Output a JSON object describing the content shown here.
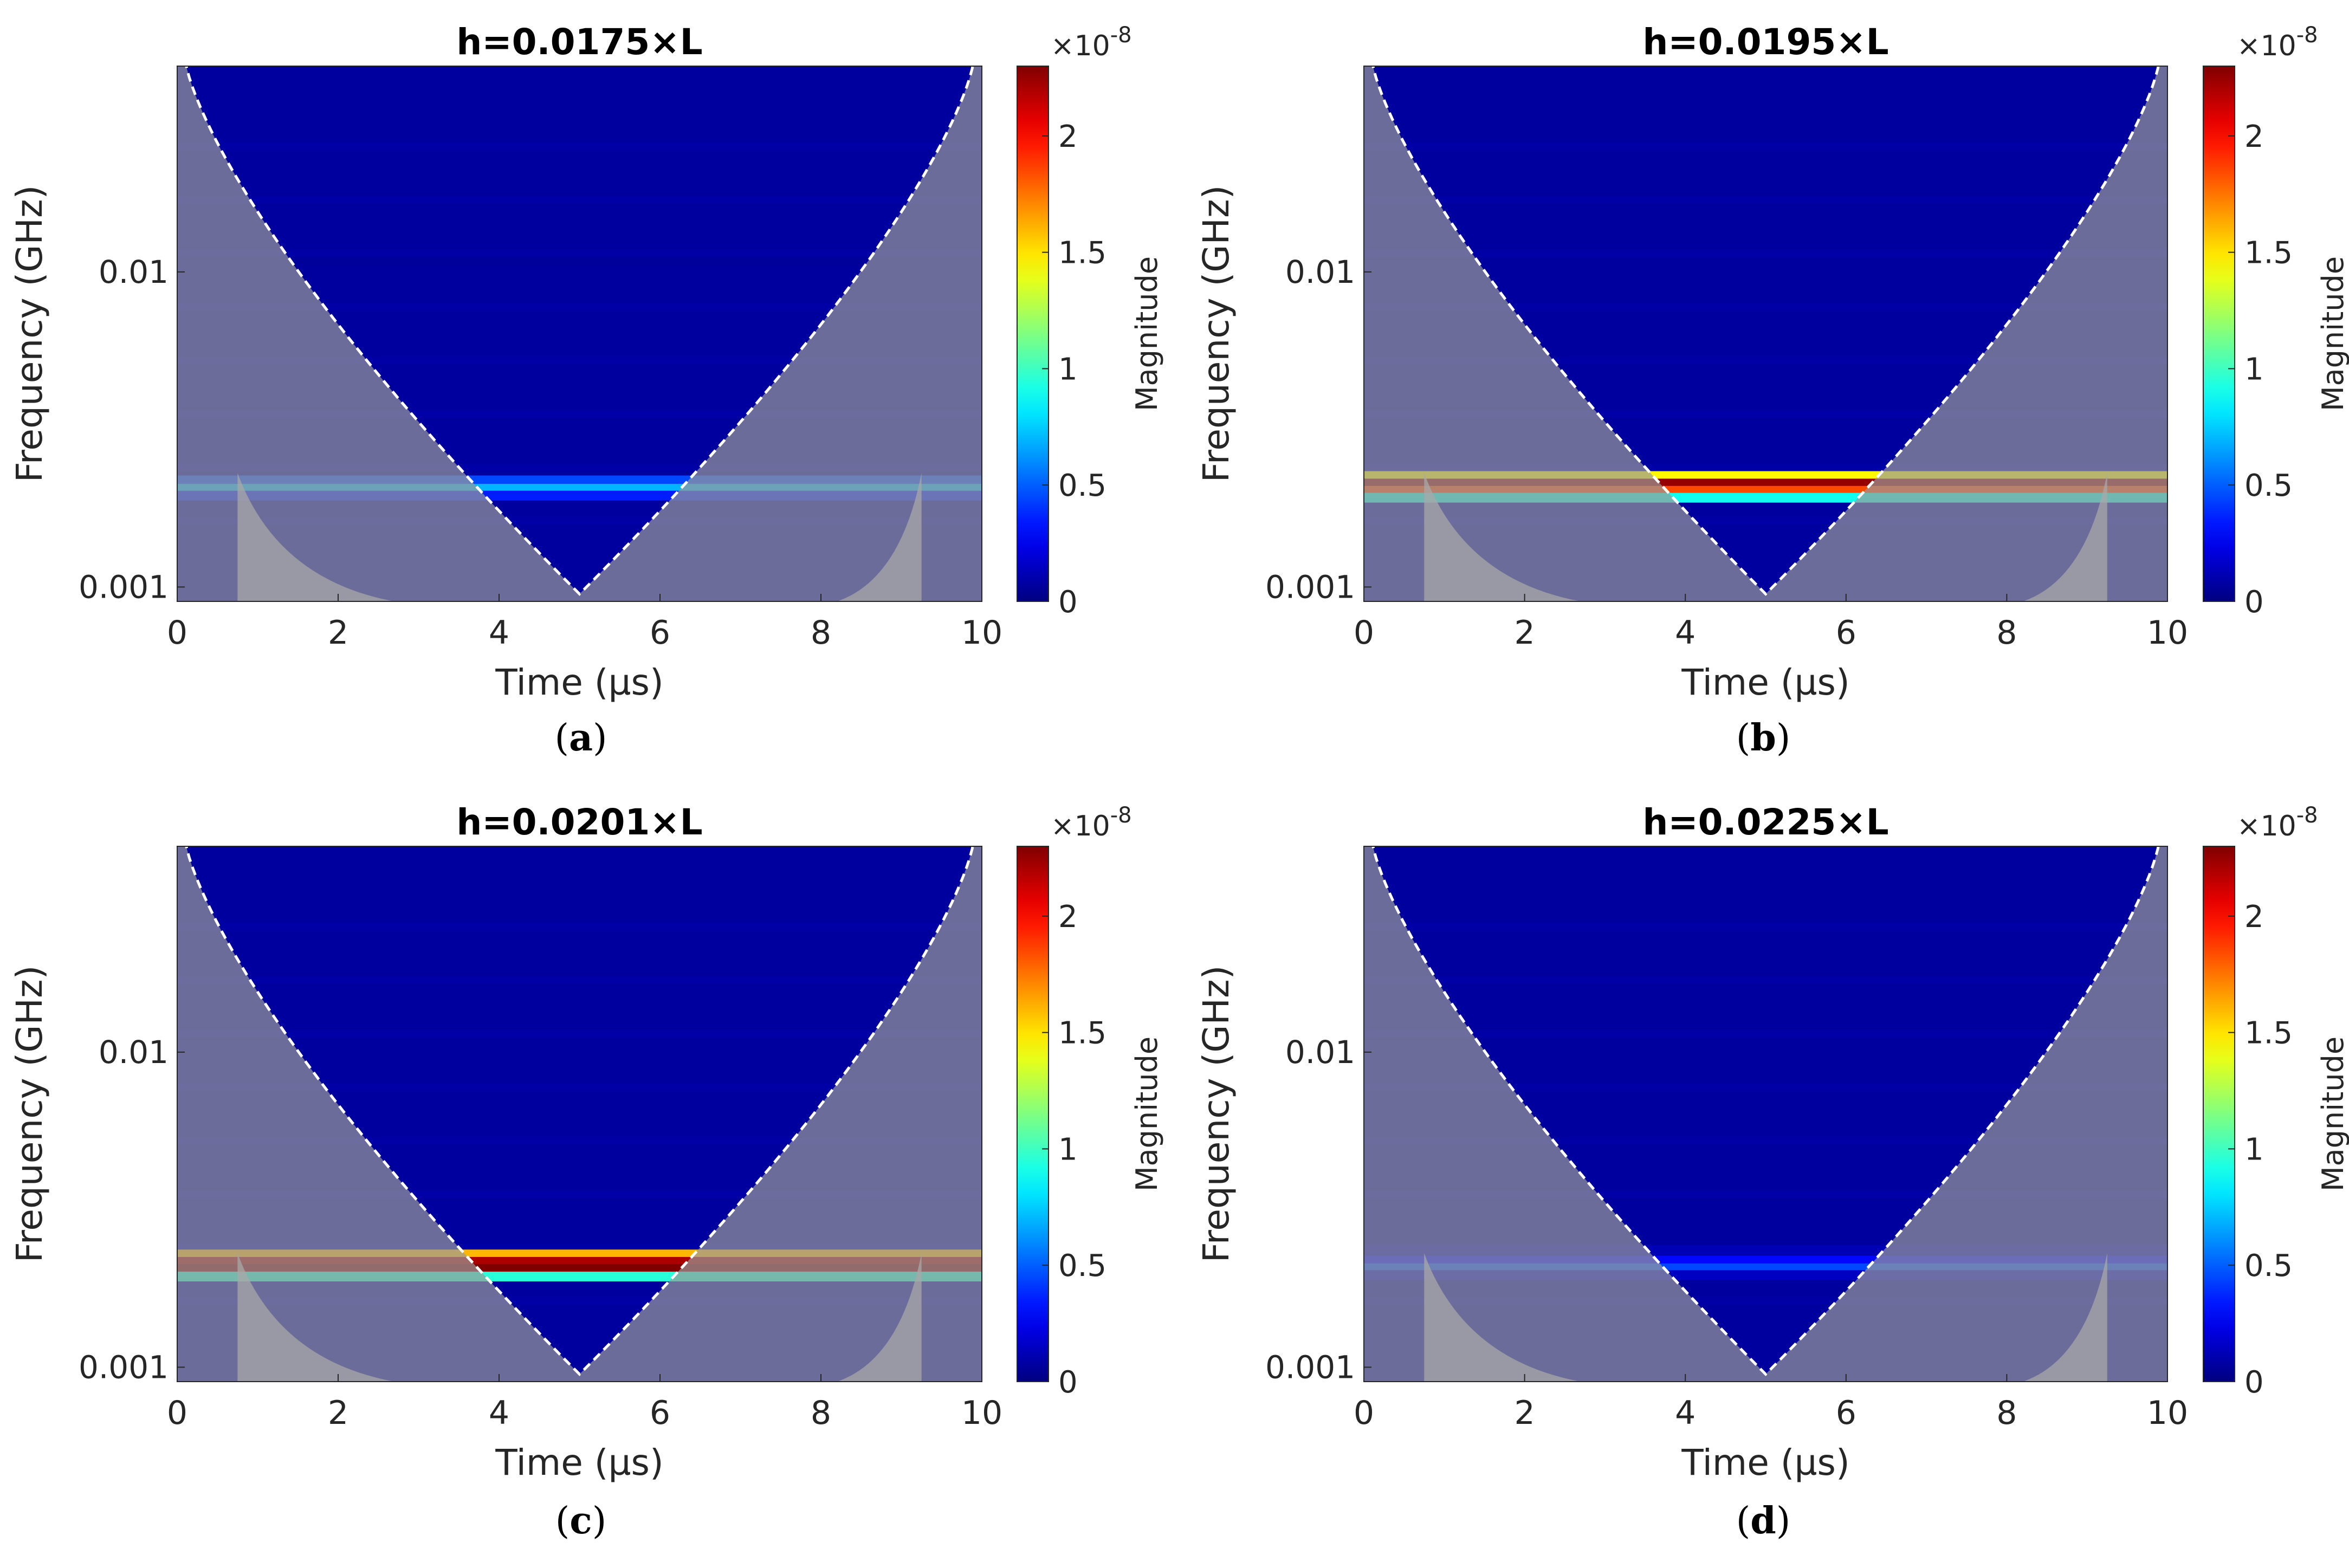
{
  "figure": {
    "panels": [
      "a",
      "b",
      "c",
      "d"
    ]
  },
  "chart_data": [
    {
      "type": "heatmap",
      "panel_label": "(a)",
      "title": "h=0.0175×L",
      "xlabel": "Time (µs)",
      "ylabel": "Frequency (GHz)",
      "xlim": [
        0,
        10
      ],
      "ylim": [
        0.0009,
        0.045
      ],
      "yscale": "log",
      "xticks": [
        0,
        2,
        4,
        6,
        8,
        10
      ],
      "xtick_labels": [
        "0",
        "2",
        "4",
        "6",
        "8",
        "10"
      ],
      "yticks": [
        0.001,
        0.01
      ],
      "ytick_labels": [
        "0.001",
        "0.01"
      ],
      "colorbar": {
        "label": "Magnitude",
        "exponent_label": "×10",
        "exponent": "-8",
        "ticks": [
          0,
          0.5,
          1,
          1.5,
          2
        ],
        "tick_labels": [
          "0",
          "0.5",
          "1",
          "1.5",
          "2"
        ],
        "range": [
          0,
          2.3
        ],
        "colormap": "jet"
      },
      "bands": [
        {
          "freq": 0.00218,
          "magnitude": 0.45
        },
        {
          "freq": 0.00205,
          "magnitude": 0.7
        },
        {
          "freq": 0.00195,
          "magnitude": 0.35
        },
        {
          "freq": 0.0108,
          "magnitude": 0.06
        }
      ],
      "cone_of_influence": {
        "min_freq": 0.00095,
        "center_time": 5
      }
    },
    {
      "type": "heatmap",
      "panel_label": "(b)",
      "title": "h=0.0195×L",
      "xlabel": "Time (µs)",
      "ylabel": "Frequency (GHz)",
      "xlim": [
        0,
        10
      ],
      "ylim": [
        0.0009,
        0.045
      ],
      "yscale": "log",
      "xticks": [
        0,
        2,
        4,
        6,
        8,
        10
      ],
      "xtick_labels": [
        "0",
        "2",
        "4",
        "6",
        "8",
        "10"
      ],
      "yticks": [
        0.001,
        0.01
      ],
      "ytick_labels": [
        "0.001",
        "0.01"
      ],
      "colorbar": {
        "label": "Magnitude",
        "exponent_label": "×10",
        "exponent": "-8",
        "ticks": [
          0,
          0.5,
          1,
          1.5,
          2
        ],
        "tick_labels": [
          "0",
          "0.5",
          "1",
          "1.5",
          "2"
        ],
        "range": [
          0,
          2.3
        ],
        "colormap": "jet"
      },
      "bands": [
        {
          "freq": 0.00225,
          "magnitude": 1.45
        },
        {
          "freq": 0.00213,
          "magnitude": 2.25
        },
        {
          "freq": 0.00202,
          "magnitude": 1.85
        },
        {
          "freq": 0.00192,
          "magnitude": 0.9
        }
      ],
      "cone_of_influence": {
        "min_freq": 0.00095,
        "center_time": 5
      }
    },
    {
      "type": "heatmap",
      "panel_label": "(c)",
      "title": "h=0.0201×L",
      "xlabel": "Time (µs)",
      "ylabel": "Frequency (GHz)",
      "xlim": [
        0,
        10
      ],
      "ylim": [
        0.0009,
        0.045
      ],
      "yscale": "log",
      "xticks": [
        0,
        2,
        4,
        6,
        8,
        10
      ],
      "xtick_labels": [
        "0",
        "2",
        "4",
        "6",
        "8",
        "10"
      ],
      "yticks": [
        0.001,
        0.01
      ],
      "ytick_labels": [
        "0.001",
        "0.01"
      ],
      "colorbar": {
        "label": "Magnitude",
        "exponent_label": "×10",
        "exponent": "-8",
        "ticks": [
          0,
          0.5,
          1,
          1.5,
          2
        ],
        "tick_labels": [
          "0",
          "0.5",
          "1",
          "1.5",
          "2"
        ],
        "range": [
          0,
          2.3
        ],
        "colormap": "jet"
      },
      "bands": [
        {
          "freq": 0.00228,
          "magnitude": 1.6
        },
        {
          "freq": 0.00216,
          "magnitude": 2.2
        },
        {
          "freq": 0.00205,
          "magnitude": 2.3
        },
        {
          "freq": 0.00194,
          "magnitude": 0.95
        }
      ],
      "cone_of_influence": {
        "min_freq": 0.00095,
        "center_time": 5
      }
    },
    {
      "type": "heatmap",
      "panel_label": "(d)",
      "title": "h=0.0225×L",
      "xlabel": "Time (µs)",
      "ylabel": "Frequency (GHz)",
      "xlim": [
        0,
        10
      ],
      "ylim": [
        0.0009,
        0.045
      ],
      "yscale": "log",
      "xticks": [
        0,
        2,
        4,
        6,
        8,
        10
      ],
      "xtick_labels": [
        "0",
        "2",
        "4",
        "6",
        "8",
        "10"
      ],
      "yticks": [
        0.001,
        0.01
      ],
      "ytick_labels": [
        "0.001",
        "0.01"
      ],
      "colorbar": {
        "label": "Magnitude",
        "exponent_label": "×10",
        "exponent": "-8",
        "ticks": [
          0,
          0.5,
          1,
          1.5,
          2
        ],
        "tick_labels": [
          "0",
          "0.5",
          "1",
          "1.5",
          "2"
        ],
        "range": [
          0,
          2.3
        ],
        "colormap": "jet"
      },
      "bands": [
        {
          "freq": 0.00235,
          "magnitude": 0.12
        },
        {
          "freq": 0.00218,
          "magnitude": 0.3
        },
        {
          "freq": 0.00206,
          "magnitude": 0.45
        },
        {
          "freq": 0.00196,
          "magnitude": 0.15
        }
      ],
      "cone_of_influence": {
        "min_freq": 0.00095,
        "center_time": 5
      }
    }
  ],
  "colors": {
    "background_low": "#00008f",
    "coi_overlay": "#9a9a9a",
    "boundary": "#ffffff"
  }
}
